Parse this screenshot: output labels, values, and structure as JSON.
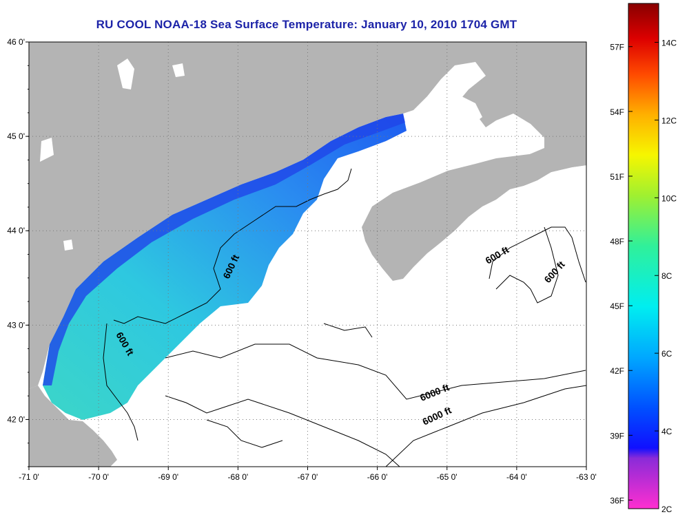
{
  "title": "RU COOL  NOAA-18  Sea Surface Temperature:  January 10, 2010 1704 GMT",
  "map": {
    "lat_ticks": [
      "46 0'",
      "45 0'",
      "44 0'",
      "43 0'",
      "42 0'"
    ],
    "lon_ticks": [
      "-71 0'",
      "-70 0'",
      "-69 0'",
      "-68 0'",
      "-67 0'",
      "-66 0'",
      "-65 0'",
      "-64 0'",
      "-63 0'"
    ],
    "lat_range": [
      41.5,
      46.0
    ],
    "lon_range": [
      -71.0,
      -63.0
    ],
    "grid": true,
    "colors": {
      "land": "#b4b4b4",
      "water": "#ffffff"
    }
  },
  "contours": [
    {
      "text": "600 ft"
    },
    {
      "text": "600 ft"
    },
    {
      "text": "600 ft"
    },
    {
      "text": "600 ft"
    },
    {
      "text": "6000 ft"
    }
  ],
  "colorbar": {
    "f_labels": [
      "57F",
      "54F",
      "51F",
      "48F",
      "45F",
      "42F",
      "39F",
      "36F"
    ],
    "c_labels": [
      "14C",
      "12C",
      "10C",
      "8C",
      "6C",
      "4C",
      "2C"
    ],
    "range_c": [
      2,
      15
    ]
  }
}
